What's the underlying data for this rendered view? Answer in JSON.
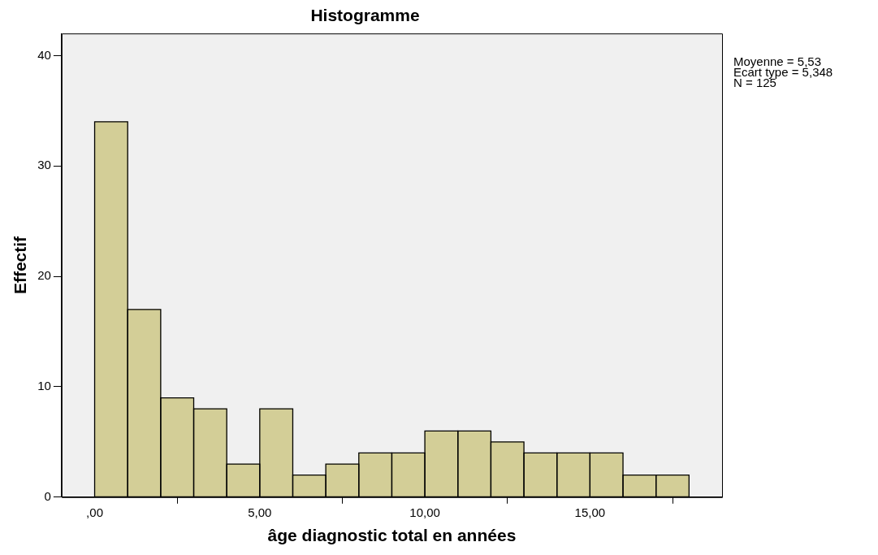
{
  "chart_data": {
    "type": "histogram",
    "title": "Histogramme",
    "xlabel": "âge diagnostic total en années",
    "ylabel": "Effectif",
    "bins": [
      0,
      1,
      2,
      3,
      4,
      5,
      6,
      7,
      8,
      9,
      10,
      11,
      12,
      13,
      14,
      15,
      16,
      17,
      18
    ],
    "values": [
      34,
      17,
      9,
      8,
      3,
      8,
      2,
      3,
      4,
      4,
      6,
      6,
      5,
      4,
      4,
      4,
      2,
      2
    ],
    "color": "#d3ce97",
    "xlim": [
      -1,
      19
    ],
    "xticks": [
      {
        "value": 0,
        "label": ",00"
      },
      {
        "value": 5,
        "label": "5,00"
      },
      {
        "value": 10,
        "label": "10,00"
      },
      {
        "value": 15,
        "label": "15,00"
      }
    ],
    "ylim": [
      0,
      42
    ],
    "yticks": [
      0,
      10,
      20,
      30,
      40
    ],
    "grid": false,
    "legend": false,
    "annotations": [
      "Moyenne = 5,53",
      "Ecart type = 5,348",
      "N = 125"
    ]
  }
}
